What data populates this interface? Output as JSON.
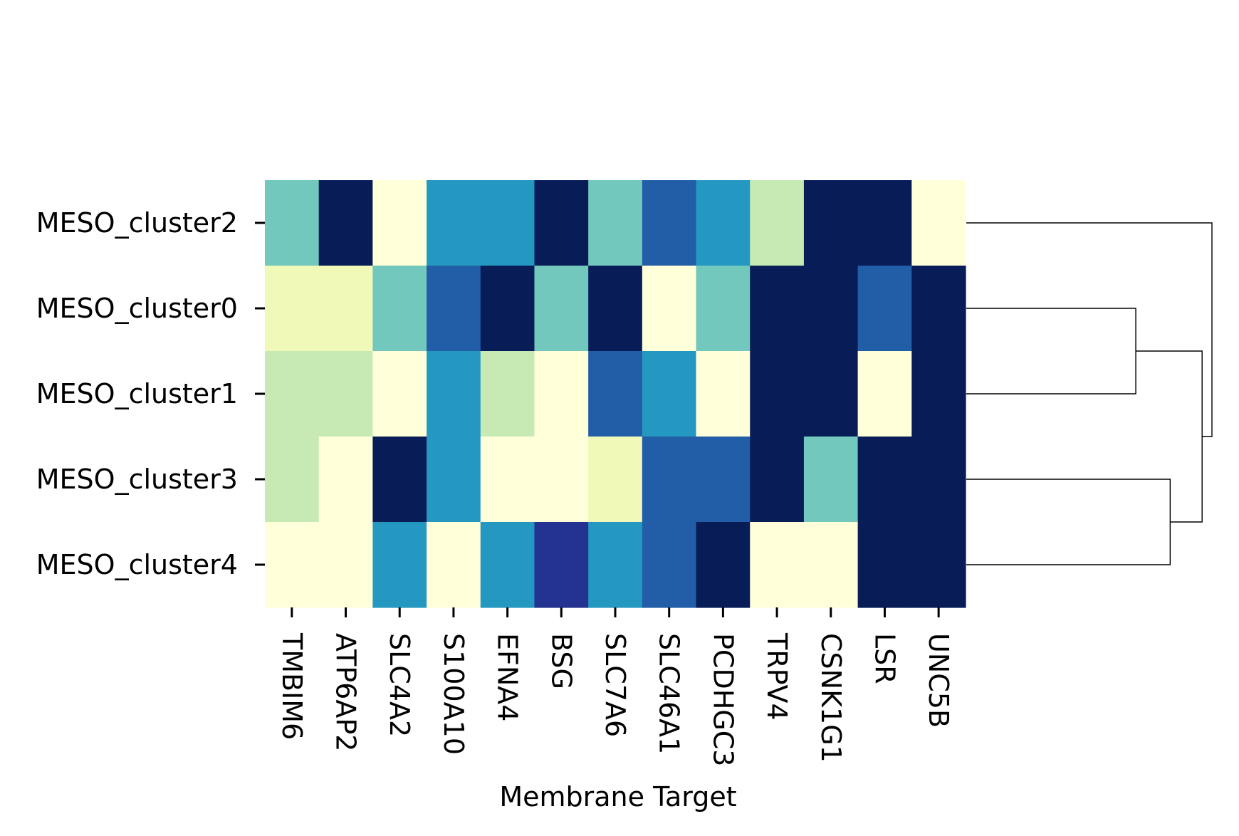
{
  "chart_data": {
    "type": "heatmap",
    "title": "",
    "xlabel": "Membrane Target",
    "ylabel": "",
    "rows": [
      "MESO_cluster2",
      "MESO_cluster0",
      "MESO_cluster1",
      "MESO_cluster3",
      "MESO_cluster4"
    ],
    "columns": [
      "TMBIM6",
      "ATP6AP2",
      "SLC4A2",
      "S100A10",
      "EFNA4",
      "BSG",
      "SLC7A6",
      "SLC46A1",
      "PCDHGC3",
      "TRPV4",
      "CSNK1G1",
      "LSR",
      "UNC5B"
    ],
    "values": [
      [
        0.4,
        1.0,
        0.0,
        0.6,
        0.6,
        1.0,
        0.4,
        0.75,
        0.6,
        0.25,
        1.0,
        1.0,
        0.0
      ],
      [
        0.1,
        0.1,
        0.4,
        0.75,
        1.0,
        0.4,
        1.0,
        0.0,
        0.4,
        1.0,
        1.0,
        0.75,
        1.0
      ],
      [
        0.25,
        0.25,
        0.0,
        0.6,
        0.25,
        0.0,
        0.75,
        0.6,
        0.0,
        1.0,
        1.0,
        0.0,
        1.0
      ],
      [
        0.25,
        0.0,
        1.0,
        0.6,
        0.0,
        0.0,
        0.1,
        0.75,
        0.75,
        1.0,
        0.4,
        1.0,
        1.0
      ],
      [
        0.0,
        0.0,
        0.6,
        0.0,
        0.6,
        0.88,
        0.6,
        0.75,
        1.0,
        0.0,
        0.0,
        1.0,
        1.0
      ]
    ],
    "value_range": [
      0,
      1
    ],
    "colormap": "YlGnBu",
    "colorbar": false,
    "row_dendrogram": {
      "side": "right",
      "leaf_order": [
        "MESO_cluster2",
        "MESO_cluster0",
        "MESO_cluster1",
        "MESO_cluster3",
        "MESO_cluster4"
      ],
      "merges": [
        {
          "left": "MESO_cluster0",
          "right": "MESO_cluster1",
          "height": 0.31
        },
        {
          "left": "MESO_cluster3",
          "right": "MESO_cluster4",
          "height": 0.17
        },
        {
          "left": "MESO_cluster0+MESO_cluster1",
          "right": "MESO_cluster3+MESO_cluster4",
          "height": 0.04
        },
        {
          "left": "MESO_cluster2",
          "right": "MESO_cluster0+MESO_cluster1+MESO_cluster3+MESO_cluster4",
          "height": 0.0
        }
      ]
    }
  }
}
